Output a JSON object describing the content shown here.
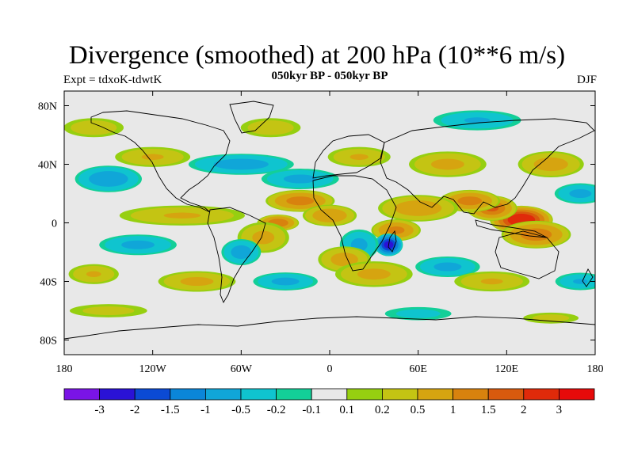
{
  "title": "Divergence (smoothed) at 200 hPa (10**6 m/s)",
  "subtitle": "050kyr BP - 050kyr BP",
  "experiment": "Expt = tdxoK-tdwtK",
  "season": "DJF",
  "map": {
    "lon_ticks": [
      "180",
      "120W",
      "60W",
      "0",
      "60E",
      "120E",
      "180"
    ],
    "lat_ticks": [
      "80N",
      "40N",
      "0",
      "40S",
      "80S"
    ],
    "background_color": "#e8e8e8",
    "coastline_color": "#000000"
  },
  "colorbar": {
    "labels": [
      "-3",
      "-2",
      "-1.5",
      "-1",
      "-0.5",
      "-0.2",
      "-0.1",
      "0.1",
      "0.2",
      "0.5",
      "1",
      "1.5",
      "2",
      "3"
    ],
    "colors": [
      "#7a14e6",
      "#2a12d6",
      "#0b4ad4",
      "#0b86d8",
      "#10a6d8",
      "#0fc4cf",
      "#13cf98",
      "#e8e8e8",
      "#96cf10",
      "#c4c413",
      "#d6a410",
      "#d8820e",
      "#d85a0e",
      "#e02a0a",
      "#e60a0a"
    ]
  },
  "chart_data": {
    "type": "heatmap",
    "title": "Divergence (smoothed) at 200 hPa (10**6 m/s)",
    "subtitle": "050kyr BP - 050kyr BP",
    "x_range": [
      -180,
      180
    ],
    "y_range": [
      -90,
      90
    ],
    "levels": [
      -3,
      -2,
      -1.5,
      -1,
      -0.5,
      -0.2,
      -0.1,
      0.1,
      0.2,
      0.5,
      1,
      1.5,
      2,
      3
    ],
    "blobs": [
      {
        "lon": 130,
        "lat": 2,
        "rx": 22,
        "ry": 10,
        "value": 2.6
      },
      {
        "lon": 110,
        "lat": 10,
        "rx": 18,
        "ry": 9,
        "value": 1.5
      },
      {
        "lon": 95,
        "lat": 15,
        "rx": 22,
        "ry": 8,
        "value": 1.2
      },
      {
        "lon": 140,
        "lat": -8,
        "rx": 25,
        "ry": 10,
        "value": 1.3
      },
      {
        "lon": 60,
        "lat": 10,
        "rx": 30,
        "ry": 10,
        "value": 0.8
      },
      {
        "lon": 45,
        "lat": -5,
        "rx": 18,
        "ry": 8,
        "value": 1.1
      },
      {
        "lon": 40,
        "lat": -15,
        "rx": 10,
        "ry": 8,
        "value": -2.2
      },
      {
        "lon": 20,
        "lat": -15,
        "rx": 15,
        "ry": 12,
        "value": -0.6
      },
      {
        "lon": 10,
        "lat": -25,
        "rx": 20,
        "ry": 10,
        "value": 0.7
      },
      {
        "lon": 30,
        "lat": -35,
        "rx": 30,
        "ry": 10,
        "value": 0.6
      },
      {
        "lon": -20,
        "lat": 15,
        "rx": 25,
        "ry": 8,
        "value": 1.2
      },
      {
        "lon": 0,
        "lat": 5,
        "rx": 20,
        "ry": 8,
        "value": 0.9
      },
      {
        "lon": -35,
        "lat": 0,
        "rx": 15,
        "ry": 6,
        "value": 1.4
      },
      {
        "lon": -45,
        "lat": -10,
        "rx": 20,
        "ry": 12,
        "value": 0.6
      },
      {
        "lon": -60,
        "lat": -20,
        "rx": 15,
        "ry": 10,
        "value": -0.7
      },
      {
        "lon": -100,
        "lat": 5,
        "rx": 50,
        "ry": 8,
        "value": 0.5
      },
      {
        "lon": -130,
        "lat": -15,
        "rx": 30,
        "ry": 8,
        "value": -0.6
      },
      {
        "lon": -150,
        "lat": 30,
        "rx": 25,
        "ry": 10,
        "value": -0.8
      },
      {
        "lon": -120,
        "lat": 45,
        "rx": 30,
        "ry": 8,
        "value": 0.5
      },
      {
        "lon": -60,
        "lat": 40,
        "rx": 40,
        "ry": 8,
        "value": -0.7
      },
      {
        "lon": -20,
        "lat": 30,
        "rx": 30,
        "ry": 8,
        "value": -0.6
      },
      {
        "lon": 20,
        "lat": 45,
        "rx": 25,
        "ry": 8,
        "value": 0.5
      },
      {
        "lon": 80,
        "lat": 40,
        "rx": 30,
        "ry": 10,
        "value": 0.6
      },
      {
        "lon": 150,
        "lat": 40,
        "rx": 25,
        "ry": 10,
        "value": 0.7
      },
      {
        "lon": 170,
        "lat": 20,
        "rx": 20,
        "ry": 8,
        "value": -0.6
      },
      {
        "lon": -160,
        "lat": 65,
        "rx": 25,
        "ry": 8,
        "value": 0.4
      },
      {
        "lon": -40,
        "lat": 65,
        "rx": 25,
        "ry": 8,
        "value": 0.4
      },
      {
        "lon": 100,
        "lat": 70,
        "rx": 35,
        "ry": 8,
        "value": -0.5
      },
      {
        "lon": -160,
        "lat": -35,
        "rx": 20,
        "ry": 8,
        "value": 0.5
      },
      {
        "lon": -90,
        "lat": -40,
        "rx": 30,
        "ry": 8,
        "value": 0.6
      },
      {
        "lon": -30,
        "lat": -40,
        "rx": 25,
        "ry": 7,
        "value": -0.6
      },
      {
        "lon": 80,
        "lat": -30,
        "rx": 25,
        "ry": 8,
        "value": -0.6
      },
      {
        "lon": 110,
        "lat": -40,
        "rx": 30,
        "ry": 8,
        "value": 0.5
      },
      {
        "lon": 170,
        "lat": -40,
        "rx": 20,
        "ry": 7,
        "value": -0.5
      },
      {
        "lon": -150,
        "lat": -60,
        "rx": 35,
        "ry": 6,
        "value": 0.3
      },
      {
        "lon": 60,
        "lat": -62,
        "rx": 30,
        "ry": 6,
        "value": -0.3
      },
      {
        "lon": 150,
        "lat": -65,
        "rx": 25,
        "ry": 5,
        "value": 0.3
      }
    ]
  }
}
